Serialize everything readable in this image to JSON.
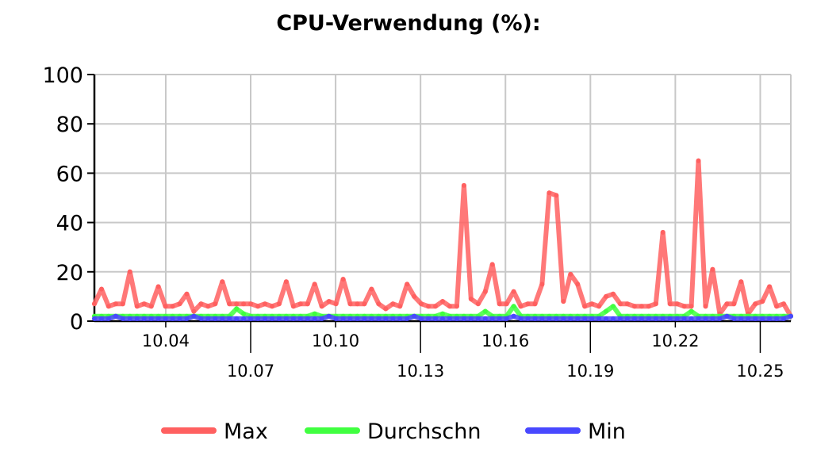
{
  "chart_data": {
    "type": "line",
    "title": "CPU-Verwendung (%):",
    "xlabel": "",
    "ylabel": "",
    "ylim": [
      0,
      100
    ],
    "y_ticks": [
      "0",
      "20",
      "40",
      "60",
      "80",
      "100"
    ],
    "x_ticks": [
      {
        "label": "10.04",
        "row": 1
      },
      {
        "label": "10.07",
        "row": 2
      },
      {
        "label": "10.10",
        "row": 1
      },
      {
        "label": "10.13",
        "row": 2
      },
      {
        "label": "10.16",
        "row": 1
      },
      {
        "label": "10.19",
        "row": 2
      },
      {
        "label": "10.22",
        "row": 1
      },
      {
        "label": "10.25",
        "row": 2
      }
    ],
    "grid": true,
    "legend_position": "bottom",
    "series": [
      {
        "name": "Max",
        "color": "#ff6060",
        "values": [
          7,
          13,
          6,
          7,
          7,
          20,
          6,
          7,
          6,
          14,
          6,
          6,
          7,
          11,
          4,
          7,
          6,
          7,
          16,
          7,
          7,
          7,
          7,
          6,
          7,
          6,
          7,
          16,
          6,
          7,
          7,
          15,
          6,
          8,
          7,
          17,
          7,
          7,
          7,
          13,
          7,
          5,
          7,
          6,
          15,
          10,
          7,
          6,
          6,
          8,
          6,
          6,
          55,
          9,
          7,
          12,
          23,
          7,
          7,
          12,
          6,
          7,
          7,
          15,
          52,
          51,
          8,
          19,
          15,
          6,
          7,
          6,
          10,
          11,
          7,
          7,
          6,
          6,
          6,
          7,
          36,
          7,
          7,
          6,
          6,
          65,
          6,
          21,
          3,
          7,
          7,
          16,
          3,
          7,
          8,
          14,
          6,
          7,
          2
        ]
      },
      {
        "name": "Durchschn",
        "color": "#40ff40",
        "values": [
          2,
          2,
          2,
          2,
          2,
          2,
          2,
          2,
          2,
          2,
          2,
          2,
          2,
          2,
          2,
          2,
          2,
          2,
          2,
          2,
          5,
          3,
          2,
          2,
          2,
          2,
          2,
          2,
          2,
          2,
          2,
          3,
          2,
          2,
          2,
          2,
          2,
          2,
          2,
          2,
          2,
          2,
          2,
          2,
          2,
          2,
          2,
          2,
          2,
          3,
          2,
          2,
          2,
          2,
          2,
          4,
          2,
          2,
          2,
          6,
          2,
          2,
          2,
          2,
          2,
          2,
          2,
          2,
          2,
          2,
          2,
          2,
          4,
          6,
          2,
          2,
          2,
          2,
          2,
          2,
          2,
          2,
          2,
          2,
          4,
          2,
          2,
          2,
          2,
          2,
          2,
          2,
          2,
          2,
          2,
          2,
          2,
          2,
          2
        ]
      },
      {
        "name": "Min",
        "color": "#4848ff",
        "values": [
          1,
          1,
          1,
          2,
          1,
          1,
          1,
          1,
          1,
          1,
          1,
          1,
          1,
          1,
          2,
          1,
          1,
          1,
          1,
          1,
          1,
          1,
          1,
          1,
          1,
          1,
          1,
          1,
          1,
          1,
          1,
          1,
          1,
          2,
          1,
          1,
          1,
          1,
          1,
          1,
          1,
          1,
          1,
          1,
          1,
          2,
          1,
          1,
          1,
          1,
          1,
          1,
          1,
          1,
          1,
          1,
          1,
          1,
          1,
          2,
          1,
          1,
          1,
          1,
          1,
          1,
          1,
          1,
          1,
          1,
          1,
          1,
          1,
          1,
          1,
          1,
          1,
          1,
          1,
          1,
          1,
          1,
          1,
          1,
          1,
          1,
          1,
          1,
          1,
          2,
          1,
          1,
          1,
          1,
          1,
          1,
          1,
          1,
          2
        ]
      }
    ]
  }
}
